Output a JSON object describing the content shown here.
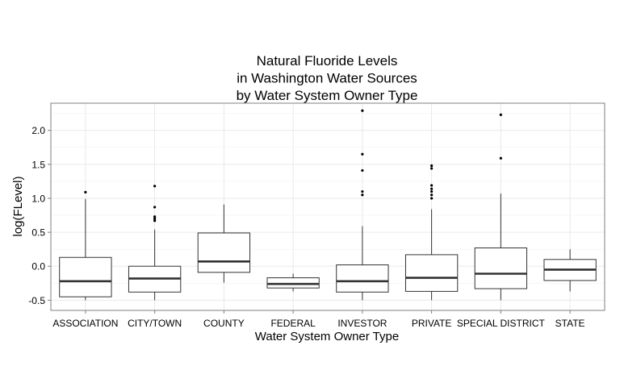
{
  "chart_data": {
    "type": "boxplot",
    "title": [
      "Natural Fluoride Levels",
      "in Washington Water Sources",
      "by Water System Owner Type"
    ],
    "xlabel": "Water System Owner Type",
    "ylabel": "log(FLevel)",
    "ylim": [
      -0.65,
      2.4
    ],
    "yticks": [
      -0.5,
      0.0,
      0.5,
      1.0,
      1.5,
      2.0
    ],
    "ytick_labels": [
      "-0.5",
      "0.0",
      "0.5",
      "1.0",
      "1.5",
      "2.0"
    ],
    "grid": true,
    "categories": [
      "ASSOCIATION",
      "CITY/TOWN",
      "COUNTY",
      "FEDERAL",
      "INVESTOR",
      "PRIVATE",
      "SPECIAL DISTRICT",
      "STATE"
    ],
    "boxes": [
      {
        "whisker_low": -0.5,
        "q1": -0.45,
        "median": -0.22,
        "q3": 0.13,
        "whisker_high": 0.99,
        "outliers": [
          1.09
        ]
      },
      {
        "whisker_low": -0.5,
        "q1": -0.38,
        "median": -0.18,
        "q3": 0.0,
        "whisker_high": 0.54,
        "outliers": [
          0.67,
          0.7,
          0.73,
          0.87,
          1.18
        ]
      },
      {
        "whisker_low": -0.24,
        "q1": -0.09,
        "median": 0.07,
        "q3": 0.49,
        "whisker_high": 0.91,
        "outliers": []
      },
      {
        "whisker_low": -0.37,
        "q1": -0.32,
        "median": -0.26,
        "q3": -0.17,
        "whisker_high": -0.11,
        "outliers": []
      },
      {
        "whisker_low": -0.5,
        "q1": -0.38,
        "median": -0.22,
        "q3": 0.02,
        "whisker_high": 0.59,
        "outliers": [
          1.05,
          1.1,
          1.41,
          1.65,
          2.29
        ]
      },
      {
        "whisker_low": -0.5,
        "q1": -0.37,
        "median": -0.17,
        "q3": 0.17,
        "whisker_high": 0.84,
        "outliers": [
          1.0,
          1.05,
          1.1,
          1.14,
          1.19,
          1.44,
          1.48
        ]
      },
      {
        "whisker_low": -0.5,
        "q1": -0.33,
        "median": -0.11,
        "q3": 0.27,
        "whisker_high": 1.07,
        "outliers": [
          1.59,
          2.23
        ]
      },
      {
        "whisker_low": -0.37,
        "q1": -0.21,
        "median": -0.05,
        "q3": 0.1,
        "whisker_high": 0.25,
        "outliers": []
      }
    ]
  }
}
